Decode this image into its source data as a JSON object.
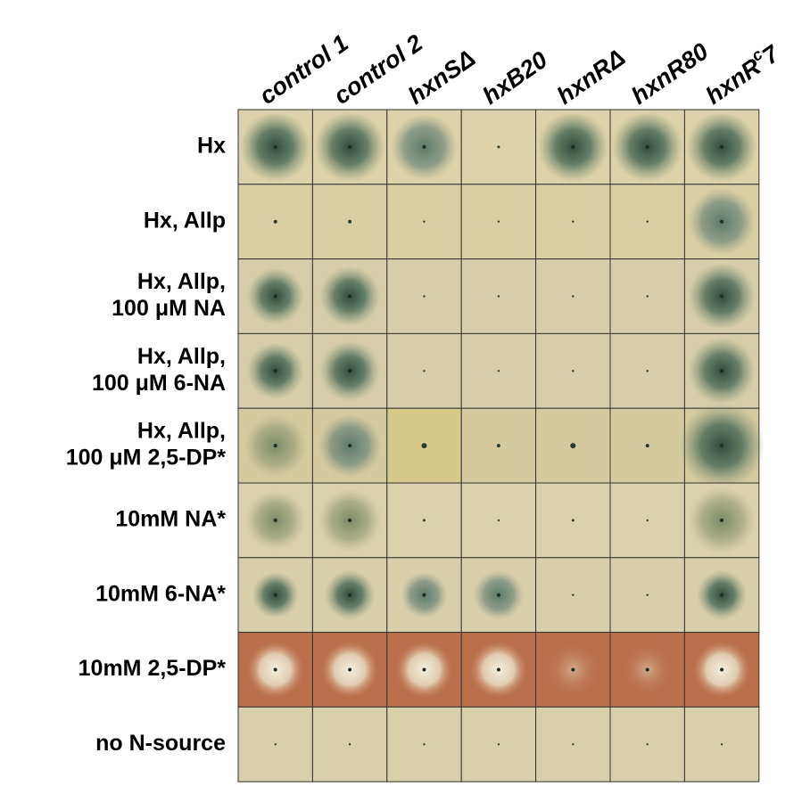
{
  "columns": [
    "control 1",
    "control 2",
    "hxnSΔ",
    "hxB20",
    "hxnRΔ",
    "hxnR80",
    {
      "base": "hxnR",
      "sup": "c",
      "rest": "7"
    }
  ],
  "rows": [
    [
      "Hx"
    ],
    [
      "Hx, Allp"
    ],
    [
      "Hx, Allp,",
      "100 μM NA"
    ],
    [
      "Hx, Allp,",
      "100 μM 6-NA"
    ],
    [
      "Hx, Allp,",
      "100 μM 2,5-DP*"
    ],
    [
      "10mM NA*"
    ],
    [
      "10mM 6-NA*"
    ],
    [
      "10mM 2,5-DP*"
    ],
    [
      "no N-source"
    ]
  ]
}
